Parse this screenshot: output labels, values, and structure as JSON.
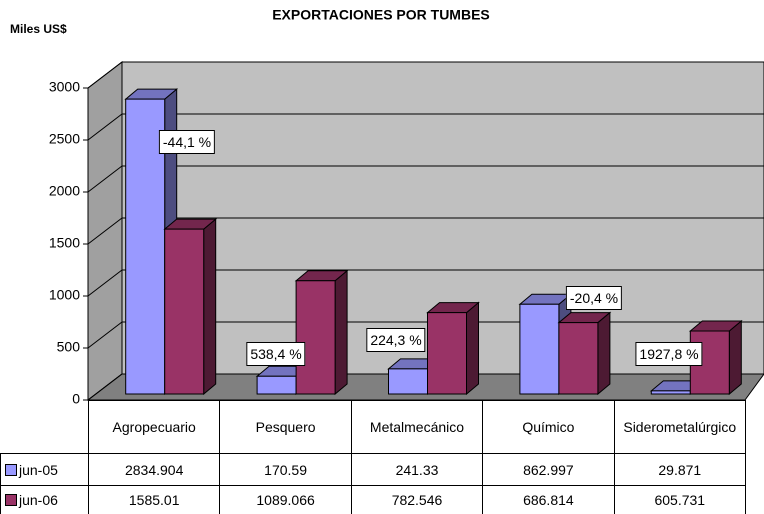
{
  "chart_data": {
    "type": "bar3d",
    "title": "EXPORTACIONES POR TUMBES",
    "y_label": "Miles US$",
    "categories": [
      "Agropecuario",
      "Pesquero",
      "Metalmecánico",
      "Químico",
      "Siderometalúrgico"
    ],
    "series": [
      {
        "name": "jun-05",
        "color": "#9999ff",
        "values": [
          2834.904,
          170.59,
          241.33,
          862.997,
          29.871
        ]
      },
      {
        "name": "jun-06",
        "color": "#993366",
        "values": [
          1585.01,
          1089.066,
          782.546,
          686.814,
          605.731
        ]
      }
    ],
    "annotations": [
      "-44,1 %",
      "538,4 %",
      "224,3 %",
      "-20,4 %",
      "1927,8 %"
    ],
    "ylim": [
      0,
      3000
    ],
    "yticks": [
      0,
      500,
      1000,
      1500,
      2000,
      2500,
      3000
    ],
    "wall_color": "#c0c0c0"
  }
}
